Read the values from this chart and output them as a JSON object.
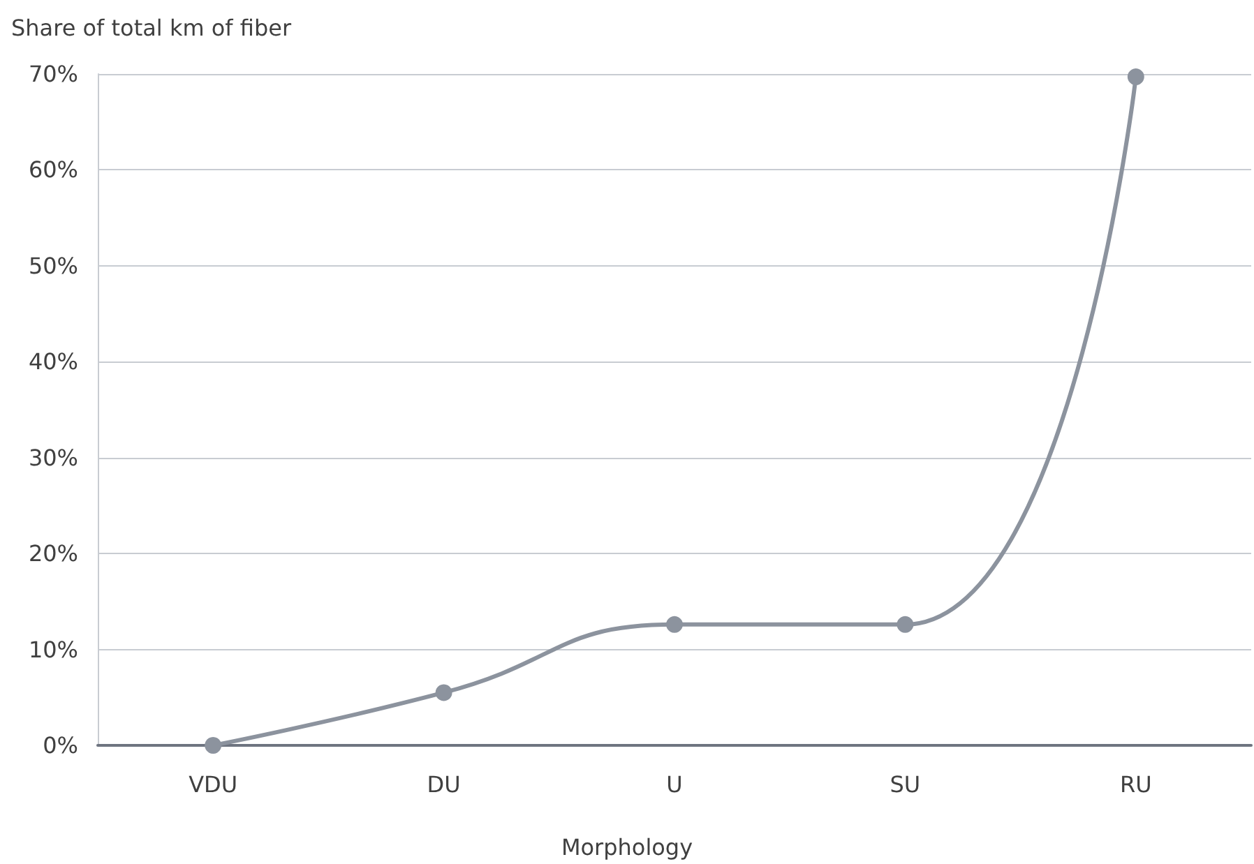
{
  "chart_data": {
    "type": "line",
    "ylabel": "Share of total km of fiber",
    "xlabel": "Morphology",
    "categories": [
      "VDU",
      "DU",
      "U",
      "SU",
      "RU"
    ],
    "series": [
      {
        "color": "#8c939e",
        "values": [
          0,
          5.5,
          12.6,
          12.6,
          69.7
        ]
      }
    ],
    "ylim": [
      0,
      70
    ],
    "yticks": [
      {
        "value": 0,
        "label": "0%"
      },
      {
        "value": 10,
        "label": "10%"
      },
      {
        "value": 20,
        "label": "20%"
      },
      {
        "value": 30,
        "label": "30%"
      },
      {
        "value": 40,
        "label": "40%"
      },
      {
        "value": 50,
        "label": "50%"
      },
      {
        "value": 60,
        "label": "60%"
      },
      {
        "value": 70,
        "label": "70%"
      }
    ],
    "grid": "y",
    "marker": "circle",
    "line_style": "solid"
  }
}
